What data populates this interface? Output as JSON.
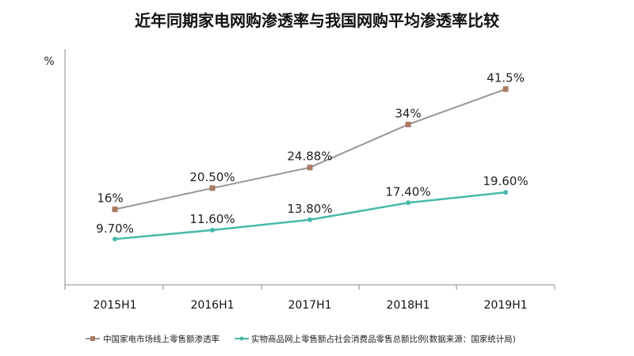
{
  "chart_data": {
    "type": "line",
    "title": "近年同期家电网购渗透率与我国网购平均渗透率比较",
    "ylabel": "%",
    "xlabel": "",
    "categories": [
      "2015H1",
      "2016H1",
      "2017H1",
      "2018H1",
      "2019H1"
    ],
    "ylim": [
      0,
      50
    ],
    "grid": false,
    "legend_position": "bottom",
    "series": [
      {
        "name": "中国家电市场线上零售额渗透率",
        "values": [
          16,
          20.5,
          24.88,
          34,
          41.5
        ],
        "labels": [
          "16%",
          "20.50%",
          "24.88%",
          "34%",
          "41.5%"
        ],
        "color": "#9a9594",
        "marker": "square",
        "marker_color": "#a97b62"
      },
      {
        "name": "实物商品网上零售额占社会消费品零售总额比例(数据来源：国家统计局)",
        "values": [
          9.7,
          11.6,
          13.8,
          17.4,
          19.6
        ],
        "labels": [
          "9.70%",
          "11.60%",
          "13.80%",
          "17.40%",
          "19.60%"
        ],
        "color": "#46b9aa",
        "marker": "circle",
        "marker_color": "#46b9aa"
      }
    ]
  }
}
